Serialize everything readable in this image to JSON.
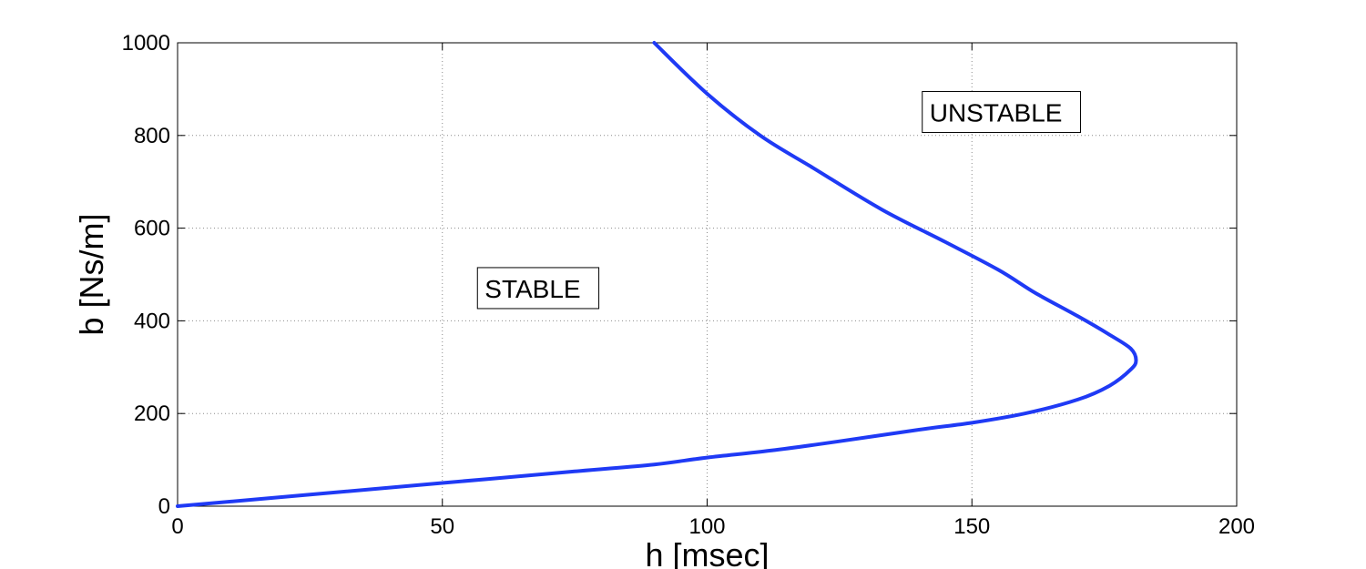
{
  "chart_data": {
    "type": "line",
    "title": "",
    "xlabel": "h [msec]",
    "ylabel": "b [Ns/m]",
    "xlim": [
      0,
      200
    ],
    "ylim": [
      0,
      1000
    ],
    "xticks": [
      0,
      50,
      100,
      150,
      200
    ],
    "yticks": [
      0,
      200,
      400,
      600,
      800,
      1000
    ],
    "grid": true,
    "line_color": "#1f3af5",
    "series": [
      {
        "x": [
          0,
          25,
          50,
          75,
          90,
          100,
          112,
          125,
          140,
          150,
          160,
          170,
          176,
          180,
          181,
          180,
          176,
          170,
          162,
          155,
          145,
          133,
          120,
          110,
          100,
          90
        ],
        "y": [
          0,
          25,
          50,
          75,
          90,
          105,
          120,
          140,
          165,
          180,
          200,
          230,
          260,
          295,
          315,
          340,
          370,
          410,
          460,
          510,
          570,
          640,
          730,
          800,
          890,
          1000
        ]
      }
    ],
    "annotations": [
      {
        "text": "STABLE",
        "x": 58,
        "y": 450
      },
      {
        "text": "UNSTABLE",
        "x": 142,
        "y": 830
      }
    ]
  }
}
